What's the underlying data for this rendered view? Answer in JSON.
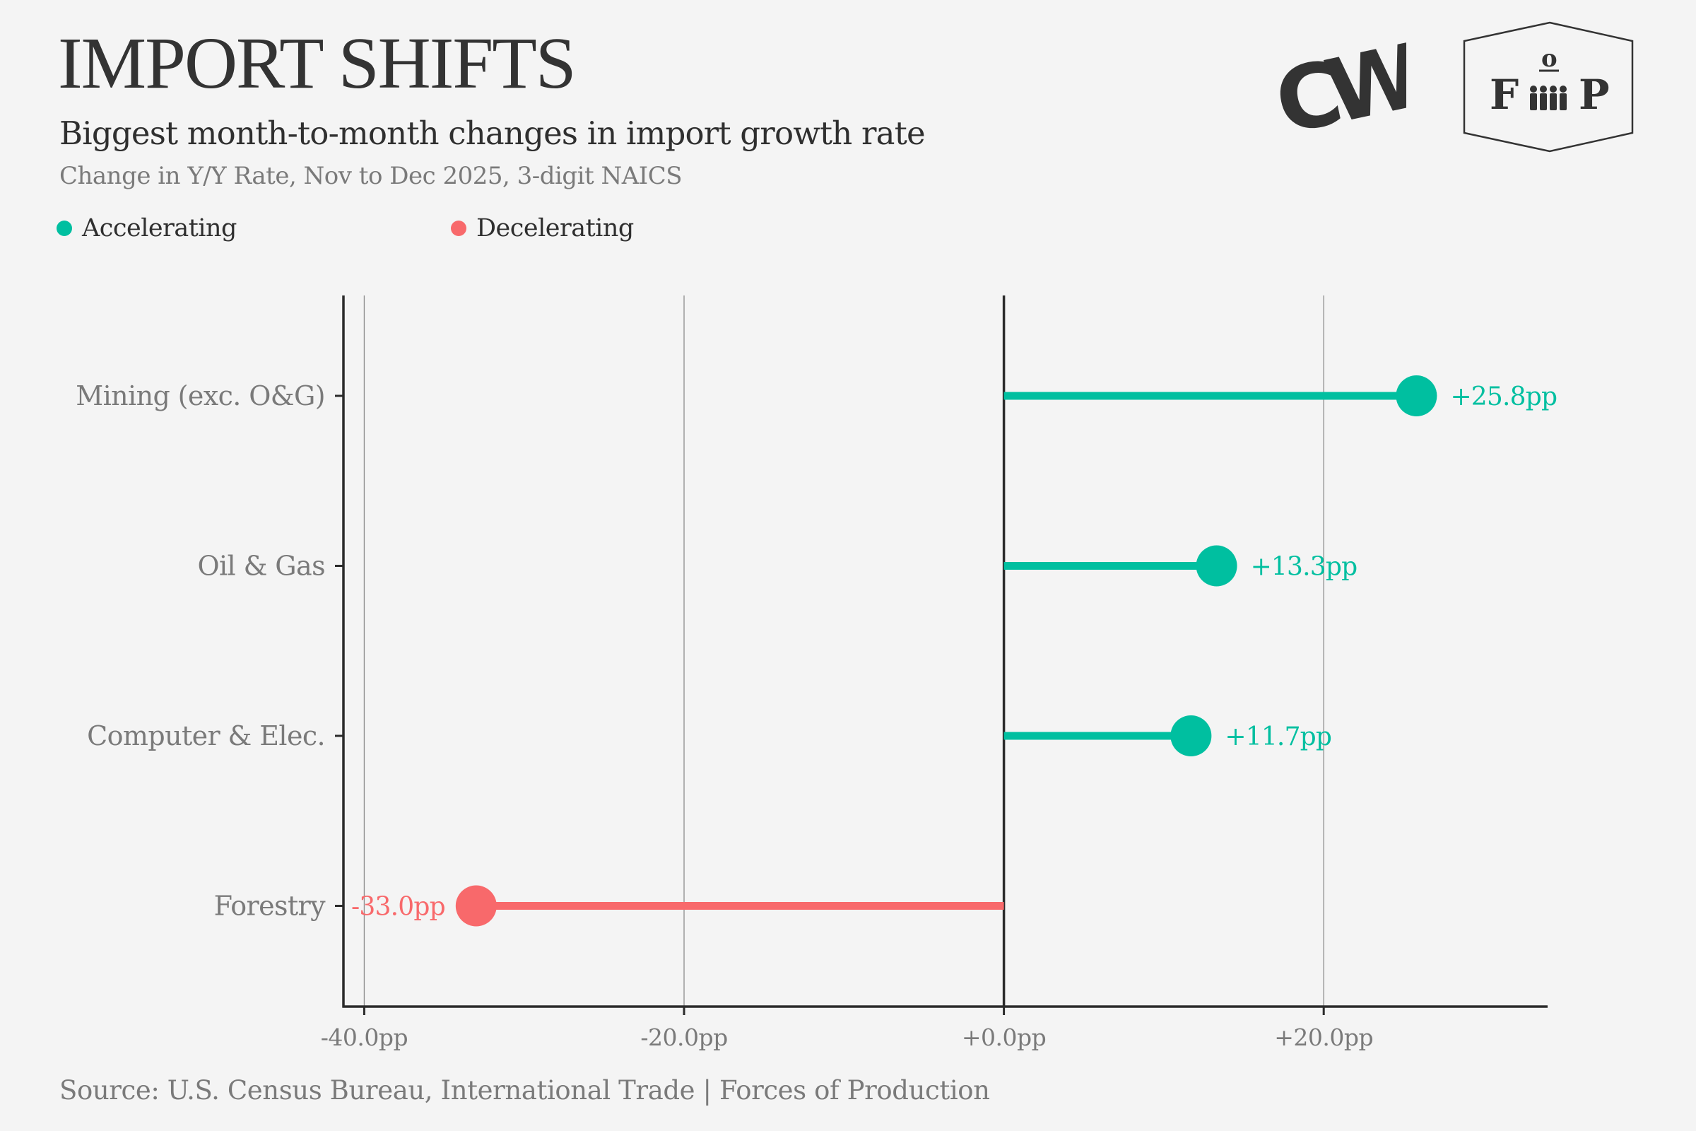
{
  "header": {
    "title": "IMPORT SHIFTS",
    "subtitle": "Biggest month-to-month changes in import growth rate",
    "caption": "Change in Y/Y Rate, Nov to Dec 2025, 3-digit NAICS"
  },
  "legend": {
    "accelerating": {
      "label": "Accelerating",
      "color": "#00BFA0"
    },
    "decelerating": {
      "label": "Decelerating",
      "color": "#F8696B"
    }
  },
  "logos": {
    "cw": {
      "text": "CW",
      "icon": "cw-logo-icon"
    },
    "fop": {
      "left": "F",
      "top": "o",
      "right": "P",
      "icon": "fop-logo-icon"
    }
  },
  "footer": {
    "source": "Source: U.S. Census Bureau, International Trade | Forces of Production"
  },
  "chart_data": {
    "type": "lollipop",
    "orientation": "horizontal",
    "categories": [
      "Mining (exc. O&G)",
      "Oil & Gas",
      "Computer & Elec.",
      "Forestry"
    ],
    "values": [
      25.8,
      13.3,
      11.7,
      -33.0
    ],
    "value_labels": [
      "+25.8pp",
      "+13.3pp",
      "+11.7pp",
      "-33.0pp"
    ],
    "series_by_sign": {
      "positive": "Accelerating",
      "negative": "Decelerating"
    },
    "xlim": [
      -41.3,
      34.0
    ],
    "x_ticks": [
      -40,
      -20,
      0,
      20
    ],
    "x_tick_labels": [
      "-40.0pp",
      "-20.0pp",
      "+0.0pp",
      "+20.0pp"
    ],
    "xlabel": "",
    "ylabel": "",
    "grid": "vertical",
    "legend_position": "top-left"
  }
}
